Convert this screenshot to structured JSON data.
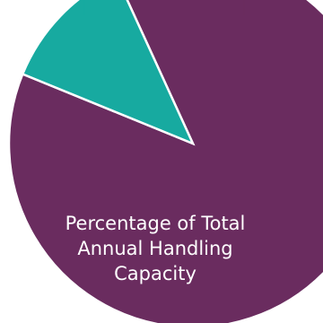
{
  "chart_data": {
    "type": "pie",
    "title": "Percentage of Total Annual Handling Capacity",
    "title_lines": [
      "Percentage of Total",
      "Annual Handling",
      "Capacity"
    ],
    "slices": [
      {
        "value": 88,
        "color": "#6a2c5f"
      },
      {
        "value": 12,
        "color": "#17aaa0"
      }
    ]
  }
}
